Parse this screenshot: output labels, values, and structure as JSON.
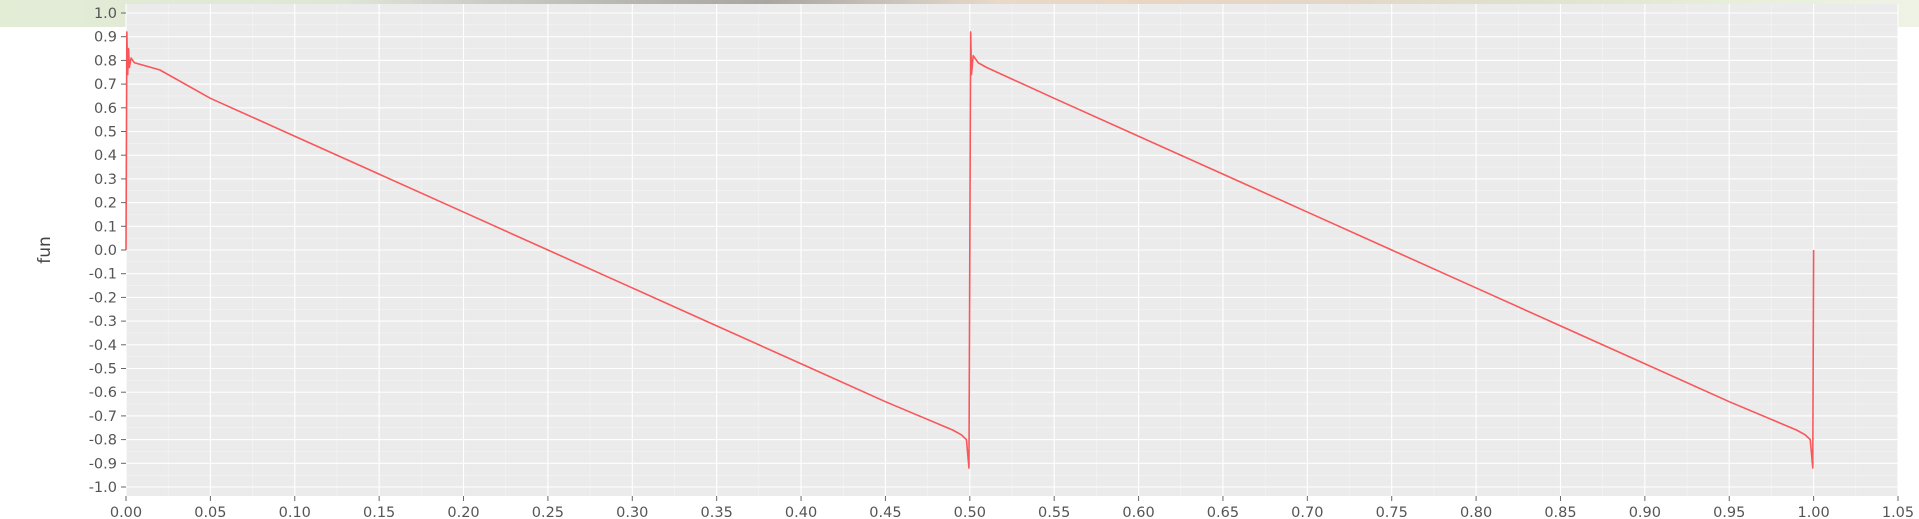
{
  "chart_data": {
    "type": "line",
    "title": "",
    "xlabel": "",
    "ylabel": "fun",
    "xlim": [
      0.0,
      1.05
    ],
    "ylim": [
      -1.0,
      1.0
    ],
    "x_ticks": [
      "0.00",
      "0.05",
      "0.10",
      "0.15",
      "0.20",
      "0.25",
      "0.30",
      "0.35",
      "0.40",
      "0.45",
      "0.50",
      "0.55",
      "0.60",
      "0.65",
      "0.70",
      "0.75",
      "0.80",
      "0.85",
      "0.90",
      "0.95",
      "1.00",
      "1.05"
    ],
    "y_ticks": [
      "1.0",
      "0.9",
      "0.8",
      "0.7",
      "0.6",
      "0.5",
      "0.4",
      "0.3",
      "0.2",
      "0.1",
      "0.0",
      "-0.1",
      "-0.2",
      "-0.3",
      "-0.4",
      "-0.5",
      "-0.6",
      "-0.7",
      "-0.8",
      "-0.9",
      "-1.0"
    ],
    "grid": true,
    "series": [
      {
        "color": "#f8575a",
        "x": [
          0.0,
          0.0005,
          0.001,
          0.0015,
          0.002,
          0.003,
          0.005,
          0.01,
          0.02,
          0.05,
          0.1,
          0.15,
          0.2,
          0.25,
          0.3,
          0.35,
          0.4,
          0.45,
          0.49,
          0.495,
          0.498,
          0.4995,
          0.5,
          0.5005,
          0.501,
          0.502,
          0.505,
          0.51,
          0.55,
          0.6,
          0.65,
          0.7,
          0.75,
          0.8,
          0.85,
          0.9,
          0.95,
          0.99,
          0.995,
          0.998,
          0.9995,
          1.0
        ],
        "y": [
          0.0,
          0.92,
          0.74,
          0.85,
          0.77,
          0.81,
          0.79,
          0.78,
          0.76,
          0.64,
          0.48,
          0.32,
          0.16,
          0.0,
          -0.16,
          -0.32,
          -0.48,
          -0.64,
          -0.76,
          -0.78,
          -0.8,
          -0.92,
          0.0,
          0.92,
          0.74,
          0.82,
          0.79,
          0.77,
          0.64,
          0.48,
          0.32,
          0.16,
          0.0,
          -0.16,
          -0.32,
          -0.48,
          -0.64,
          -0.76,
          -0.78,
          -0.8,
          -0.92,
          0.0
        ]
      }
    ]
  },
  "colors": {
    "line": "#f8575a",
    "panel": "#ebebeb",
    "grid": "#ffffff",
    "text": "#555555"
  }
}
